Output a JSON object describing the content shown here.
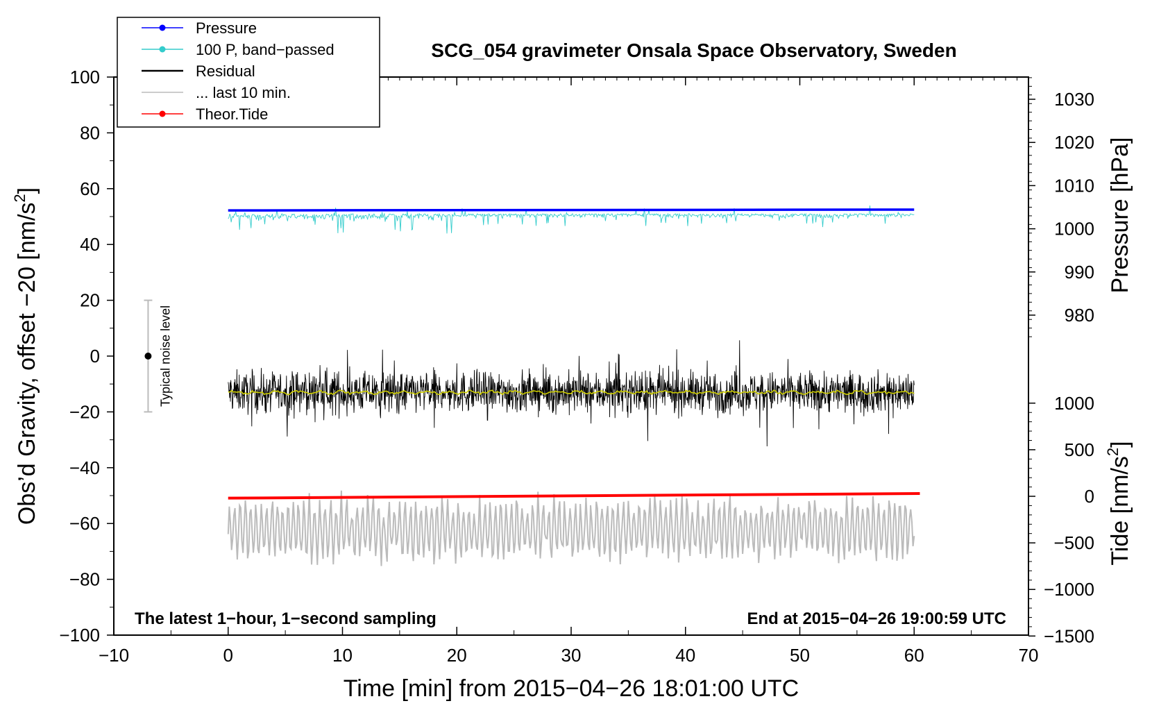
{
  "chart_data": {
    "type": "line",
    "title": "SCG_054 gravimeter Onsala Space Observatory, Sweden",
    "xlabel": "Time [min] from 2015−04−26 18:01:00 UTC",
    "ylabel_left": "Obs’d Gravity, offset −20 [nm/s",
    "ylabel_left_sup": "2",
    "ylabel_left_end": "]",
    "ylabel_right_pressure": "Pressure [hPa]",
    "ylabel_right_tide": "Tide [nm/s",
    "ylabel_right_tide_sup": "2",
    "ylabel_right_tide_end": "]",
    "xlim": [
      -10,
      70
    ],
    "ylim": [
      -100,
      100
    ],
    "pressure_axis_range": [
      970,
      1035
    ],
    "tide_axis_range": [
      -1500,
      1100
    ],
    "x_ticks": [
      "−10",
      "0",
      "10",
      "20",
      "30",
      "40",
      "50",
      "60",
      "70"
    ],
    "x_tick_values": [
      -10,
      0,
      10,
      20,
      30,
      40,
      50,
      60,
      70
    ],
    "y_ticks": [
      "100",
      "80",
      "60",
      "40",
      "20",
      "0",
      "−20",
      "−40",
      "−60",
      "−80",
      "−100"
    ],
    "y_tick_values": [
      100,
      80,
      60,
      40,
      20,
      0,
      -20,
      -40,
      -60,
      -80,
      -100
    ],
    "pressure_ticks": [
      "1030",
      "1020",
      "1010",
      "1000",
      "990",
      "980"
    ],
    "pressure_tick_values": [
      1030,
      1020,
      1010,
      1000,
      990,
      980
    ],
    "tide_ticks": [
      "1000",
      "500",
      "0",
      "−500",
      "−1000",
      "−1500"
    ],
    "tide_tick_values": [
      1000,
      500,
      0,
      -500,
      -1000,
      -1500
    ],
    "annotations": {
      "bottom_left": "The latest 1−hour, 1−second sampling",
      "bottom_right": "End at 2015−04−26 19:00:59 UTC",
      "noise_label": "Typical noise level"
    },
    "noise_bar": {
      "x": -7,
      "center": 0,
      "low": -20,
      "high": 20
    },
    "legend_position": "top-left",
    "legend": [
      {
        "label": "Pressure",
        "color": "#0000ff",
        "marker": true
      },
      {
        "label": "100 P, band−passed",
        "color": "#33cccc",
        "marker": true
      },
      {
        "label": "Residual",
        "color": "#000000",
        "marker": false
      },
      {
        "label": "... last 10 min.",
        "color": "#bbbbbb",
        "marker": false
      },
      {
        "label": "Theor.Tide",
        "color": "#ff0000",
        "marker": true
      }
    ],
    "series": [
      {
        "name": "Pressure",
        "color": "#0000ff",
        "axis": "pressure",
        "x_range": [
          0,
          60
        ],
        "values": [
          1003.7,
          1003.8
        ]
      },
      {
        "name": "100 P, band−passed",
        "color": "#33cccc",
        "axis": "left",
        "x_range": [
          0,
          60
        ],
        "level": 51,
        "noise_amplitude": 5
      },
      {
        "name": "Residual",
        "color": "#000000",
        "axis": "left",
        "x_range": [
          0,
          60
        ],
        "level": -13,
        "noise_amplitude": 14
      },
      {
        "name": "Residual smoothed",
        "color": "#cccc00",
        "axis": "left",
        "x_range": [
          0,
          60
        ],
        "level": -13
      },
      {
        "name": "... last 10 min.",
        "color": "#bbbbbb",
        "axis": "left",
        "x_range": [
          0,
          60
        ],
        "level": -62,
        "noise_amplitude": 12
      },
      {
        "name": "Theor.Tide",
        "color": "#ff0000",
        "axis": "tide",
        "x_range": [
          0,
          60.5
        ],
        "values": [
          -20,
          30
        ]
      }
    ],
    "colors": {
      "residual_smooth": "#cccc00",
      "noise_bar": "#bbbbbb"
    }
  }
}
